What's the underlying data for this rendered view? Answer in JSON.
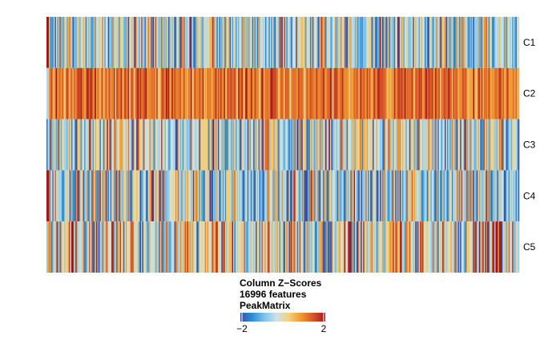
{
  "chart_data": {
    "type": "heatmap",
    "rows": [
      "C1",
      "C2",
      "C3",
      "C4",
      "C5"
    ],
    "n_columns_rendered": 400,
    "row_profiles": [
      {
        "row": "C1",
        "typical_z": -0.4,
        "spread": 1.0,
        "leading_value": 2.2
      },
      {
        "row": "C2",
        "typical_z": 1.2,
        "spread": 0.45,
        "leading_value": -0.5
      },
      {
        "row": "C3",
        "typical_z": -0.2,
        "spread": 1.0
      },
      {
        "row": "C4",
        "typical_z": -0.4,
        "spread": 1.0,
        "leading_value": 2.2
      },
      {
        "row": "C5",
        "typical_z": 0.0,
        "spread": 1.1
      }
    ],
    "legend": {
      "lines": [
        "Column Z−Scores",
        "16996 features",
        "PeakMatrix"
      ],
      "min": -2,
      "max": 2,
      "tick_labels": [
        "−2",
        "2"
      ],
      "colors": [
        "#3A4FA3",
        "#2E8FD8",
        "#7FC4EB",
        "#C9E3E8",
        "#F2D27E",
        "#F0982F",
        "#D9552A",
        "#A0171B"
      ]
    }
  }
}
